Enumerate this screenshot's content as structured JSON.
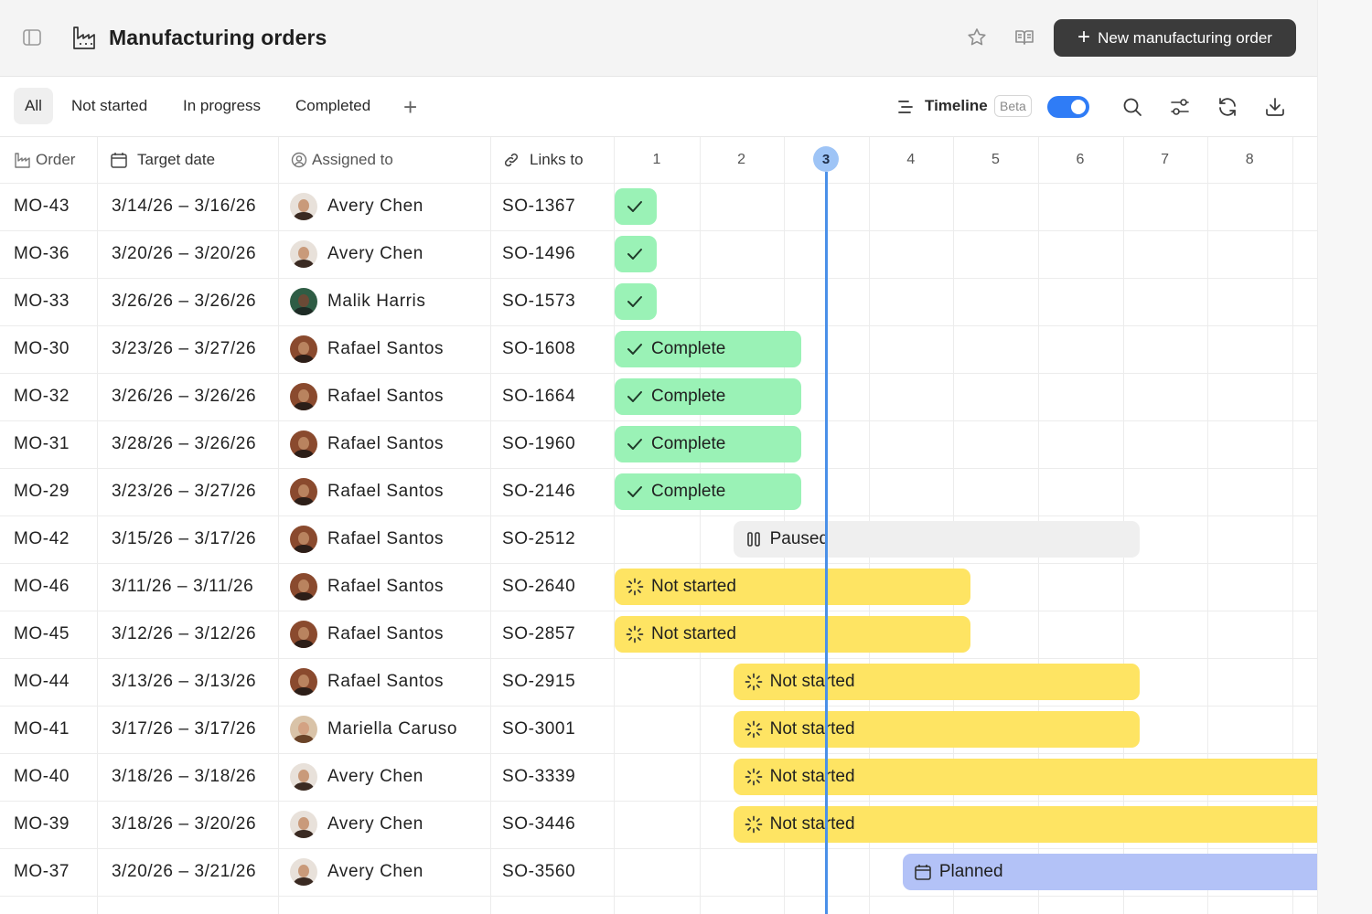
{
  "header": {
    "title": "Manufacturing orders",
    "new_button_label": "New manufacturing order"
  },
  "tabs": [
    {
      "label": "All",
      "active": true
    },
    {
      "label": "Not started",
      "active": false
    },
    {
      "label": "In progress",
      "active": false
    },
    {
      "label": "Completed",
      "active": false
    }
  ],
  "toolbar": {
    "timeline_label": "Timeline",
    "beta_label": "Beta",
    "timeline_enabled": true
  },
  "columns": {
    "order": "Order",
    "target_date": "Target date",
    "assigned_to": "Assigned to",
    "links_to": "Links to"
  },
  "timeline_days": [
    "1",
    "2",
    "3",
    "4",
    "5",
    "6",
    "7",
    "8"
  ],
  "today_day": "3",
  "colors": {
    "accent": "#2f7cf6",
    "complete": "#9af2b6",
    "paused": "#efefef",
    "not_started": "#fee463",
    "planned": "#b3c2f7",
    "primary_button": "#3b3b3b"
  },
  "rows": [
    {
      "order": "MO-43",
      "date": "3/14/26 – 3/16/26",
      "assignee": "Avery Chen",
      "link": "SO-1367",
      "status": "complete",
      "label": "",
      "start_day": 1,
      "end_day": 1.5
    },
    {
      "order": "MO-36",
      "date": "3/20/26 – 3/20/26",
      "assignee": "Avery Chen",
      "link": "SO-1496",
      "status": "complete",
      "label": "",
      "start_day": 1,
      "end_day": 1.5
    },
    {
      "order": "MO-33",
      "date": "3/26/26 – 3/26/26",
      "assignee": "Malik Harris",
      "link": "SO-1573",
      "status": "complete",
      "label": "",
      "start_day": 1,
      "end_day": 1.5
    },
    {
      "order": "MO-30",
      "date": "3/23/26 – 3/27/26",
      "assignee": "Rafael Santos",
      "link": "SO-1608",
      "status": "complete",
      "label": "Complete",
      "start_day": 1,
      "end_day": 3.2
    },
    {
      "order": "MO-32",
      "date": "3/26/26 – 3/26/26",
      "assignee": "Rafael Santos",
      "link": "SO-1664",
      "status": "complete",
      "label": "Complete",
      "start_day": 1,
      "end_day": 3.2
    },
    {
      "order": "MO-31",
      "date": "3/28/26 – 3/26/26",
      "assignee": "Rafael Santos",
      "link": "SO-1960",
      "status": "complete",
      "label": "Complete",
      "start_day": 1,
      "end_day": 3.2
    },
    {
      "order": "MO-29",
      "date": "3/23/26 – 3/27/26",
      "assignee": "Rafael Santos",
      "link": "SO-2146",
      "status": "complete",
      "label": "Complete",
      "start_day": 1,
      "end_day": 3.2
    },
    {
      "order": "MO-42",
      "date": "3/15/26 – 3/17/26",
      "assignee": "Rafael Santos",
      "link": "SO-2512",
      "status": "paused",
      "label": "Paused",
      "start_day": 2.4,
      "end_day": 7.2
    },
    {
      "order": "MO-46",
      "date": "3/11/26 – 3/11/26",
      "assignee": "Rafael Santos",
      "link": "SO-2640",
      "status": "not_started",
      "label": "Not started",
      "start_day": 1,
      "end_day": 5.2
    },
    {
      "order": "MO-45",
      "date": "3/12/26 – 3/12/26",
      "assignee": "Rafael Santos",
      "link": "SO-2857",
      "status": "not_started",
      "label": "Not started",
      "start_day": 1,
      "end_day": 5.2
    },
    {
      "order": "MO-44",
      "date": "3/13/26 – 3/13/26",
      "assignee": "Rafael Santos",
      "link": "SO-2915",
      "status": "not_started",
      "label": "Not started",
      "start_day": 2.4,
      "end_day": 7.2
    },
    {
      "order": "MO-41",
      "date": "3/17/26 – 3/17/26",
      "assignee": "Mariella Caruso",
      "link": "SO-3001",
      "status": "not_started",
      "label": "Not started",
      "start_day": 2.4,
      "end_day": 7.2
    },
    {
      "order": "MO-40",
      "date": "3/18/26 – 3/18/26",
      "assignee": "Avery Chen",
      "link": "SO-3339",
      "status": "not_started",
      "label": "Not started",
      "start_day": 2.4,
      "end_day": 9.5
    },
    {
      "order": "MO-39",
      "date": "3/18/26 – 3/20/26",
      "assignee": "Avery Chen",
      "link": "SO-3446",
      "status": "not_started",
      "label": "Not started",
      "start_day": 2.4,
      "end_day": 9.5
    },
    {
      "order": "MO-37",
      "date": "3/20/26 – 3/21/26",
      "assignee": "Avery Chen",
      "link": "SO-3560",
      "status": "planned",
      "label": "Planned",
      "start_day": 4.4,
      "end_day": 9.5
    }
  ]
}
